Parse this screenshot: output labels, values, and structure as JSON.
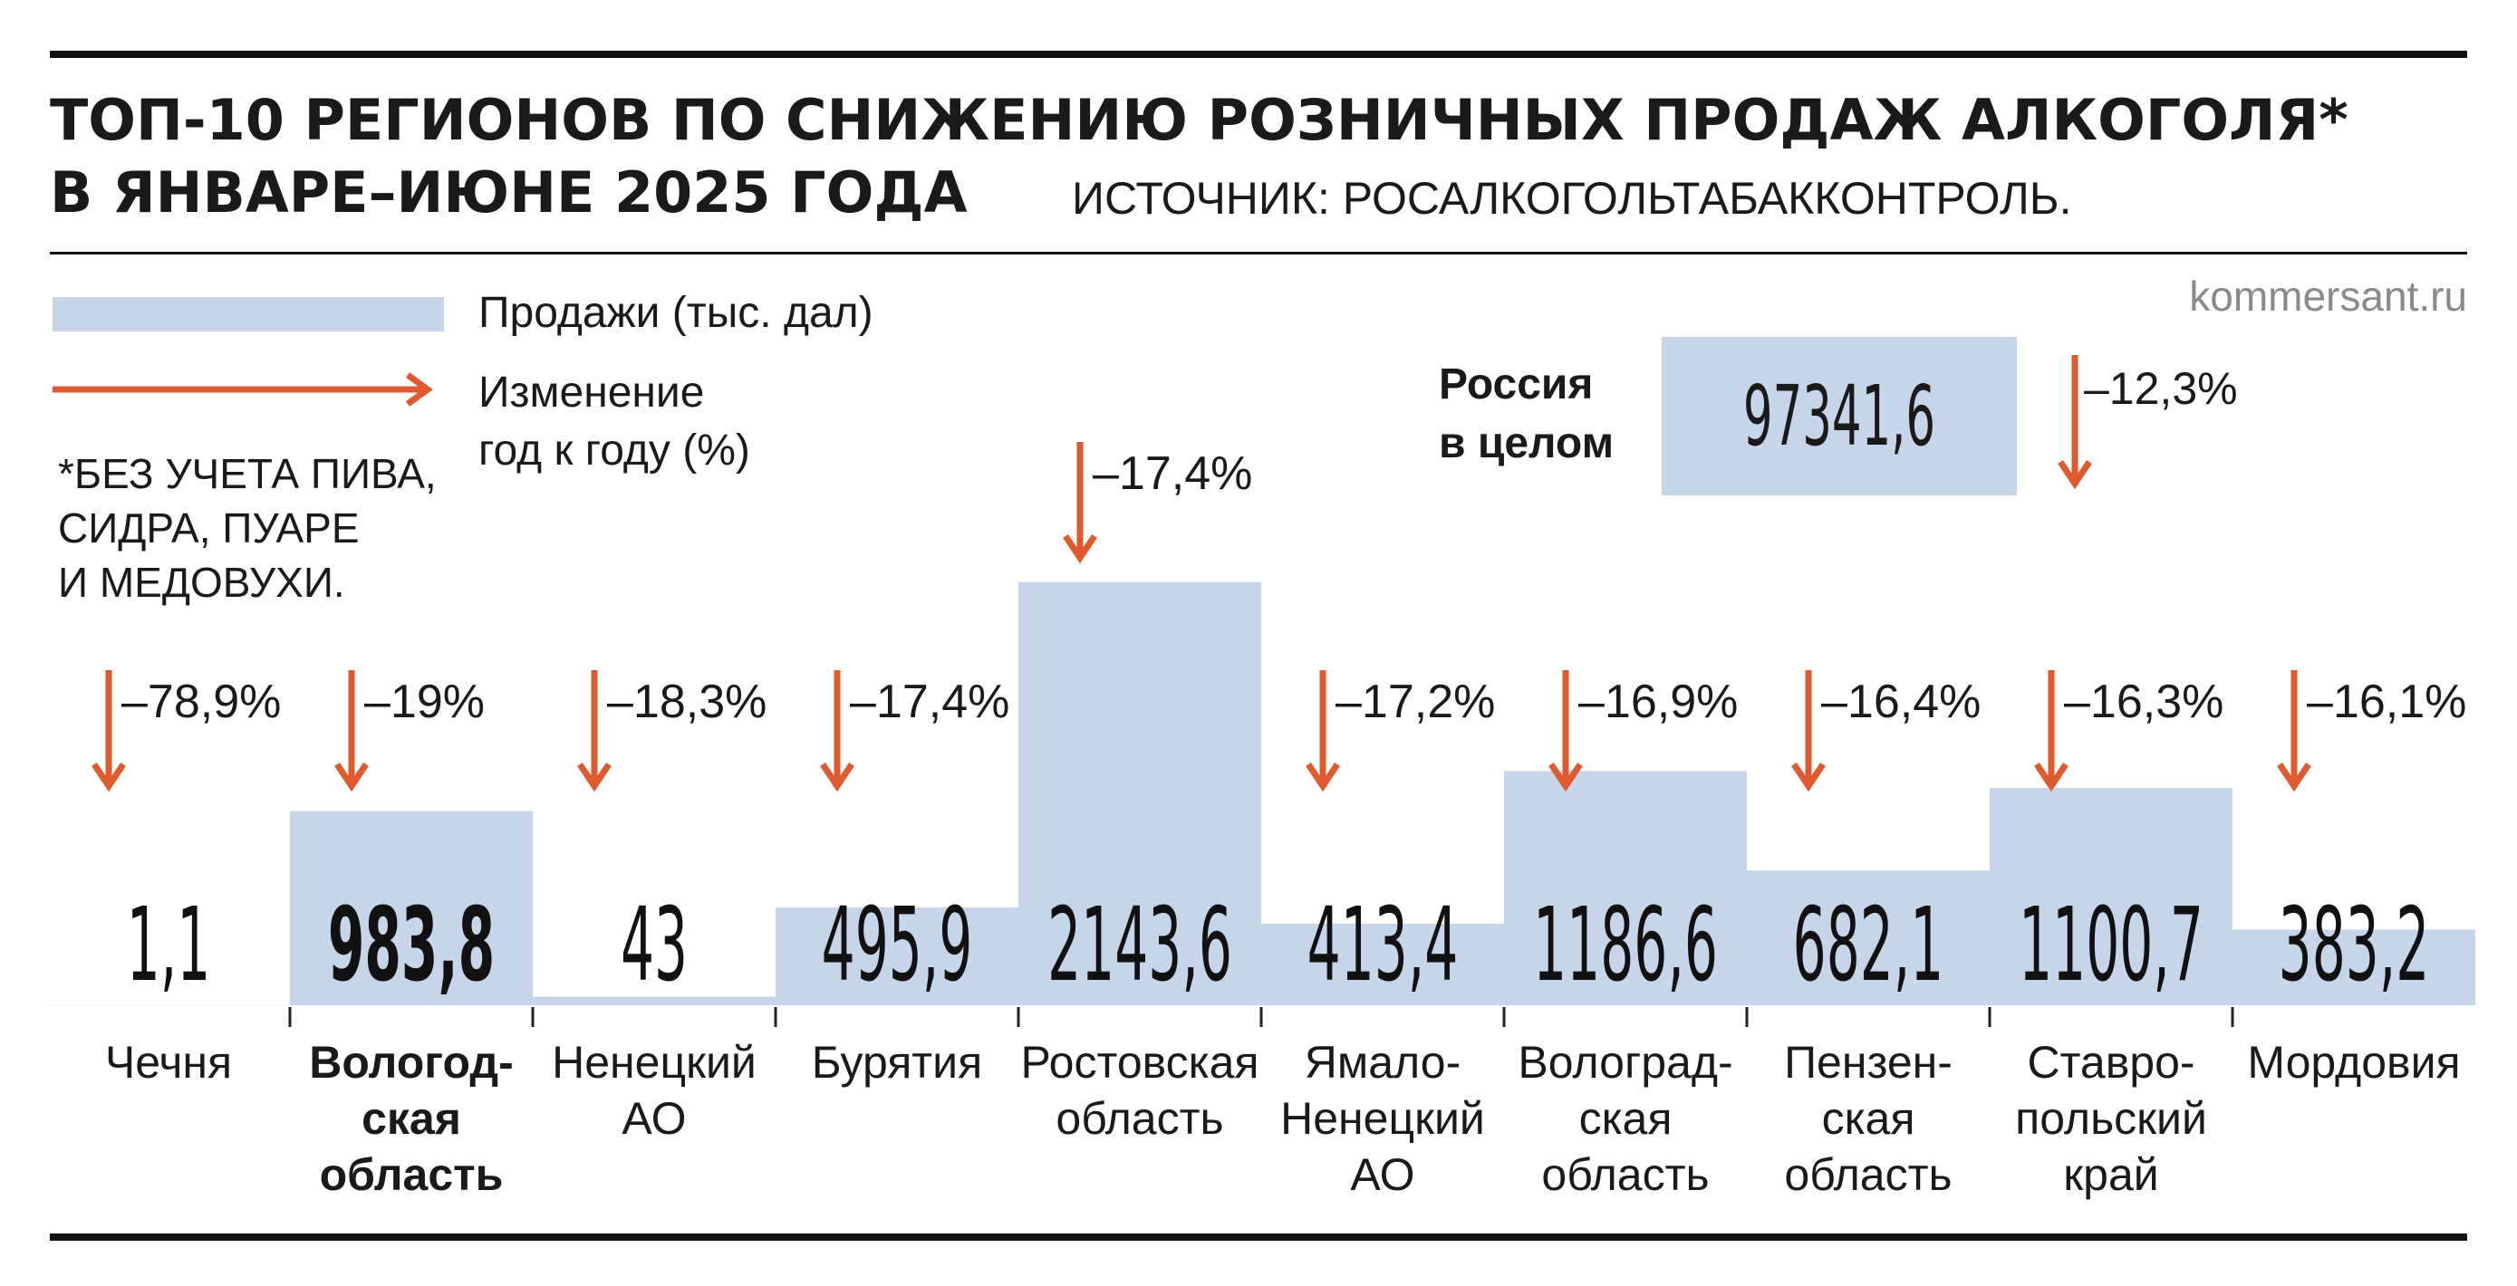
{
  "title": {
    "line1": "ТОП-10 РЕГИОНОВ ПО СНИЖЕНИЮ РОЗНИЧНЫХ ПРОДАЖ АЛКОГОЛЯ*",
    "line2": "В ЯНВАРЕ–ИЮНЕ 2025 ГОДА",
    "source": "ИСТОЧНИК: РОСАЛКОГОЛЬТАБАККОНТРОЛЬ."
  },
  "brand": "kommersant.ru",
  "legend": {
    "sales": "Продажи (тыс. дал)",
    "change_line1": "Изменение",
    "change_line2": "год к году (%)"
  },
  "footnote": [
    "*БЕЗ УЧЕТА ПИВА,",
    "СИДРА, ПУАРЕ",
    "И МЕДОВУХИ."
  ],
  "russia": {
    "label_line1": "Россия",
    "label_line2": "в целом",
    "value": "97341,6",
    "change": "–12,3%"
  },
  "colors": {
    "bar": "#c6d5e8",
    "arrow": "#e05a2f",
    "rule": "#111111"
  },
  "chart_data": {
    "type": "bar",
    "categories": [
      [
        "Чечня"
      ],
      [
        "Вологод-",
        "ская",
        "область"
      ],
      [
        "Ненецкий",
        "АО"
      ],
      [
        "Бурятия"
      ],
      [
        "Ростовская",
        "область"
      ],
      [
        "Ямало-",
        "Ненецкий",
        "АО"
      ],
      [
        "Волоград-",
        "ская",
        "область"
      ],
      [
        "Пензен-",
        "ская",
        "область"
      ],
      [
        "Ставро-",
        "польский",
        "край"
      ],
      [
        "Мордовия"
      ]
    ],
    "values": [
      1.1,
      983.8,
      43,
      495.9,
      2143.6,
      413.4,
      1186.6,
      682.1,
      1100.7,
      383.2
    ],
    "value_labels": [
      "1,1",
      "983,8",
      "43",
      "495,9",
      "2143,6",
      "413,4",
      "1186,6",
      "682,1",
      "1100,7",
      "383,2"
    ],
    "changes": [
      -78.9,
      -19,
      -18.3,
      -17.4,
      -17.4,
      -17.2,
      -16.9,
      -16.4,
      -16.3,
      -16.1
    ],
    "change_labels": [
      "–78,9%",
      "–19%",
      "–18,3%",
      "–17,4%",
      "–17,4%",
      "–17,2%",
      "–16,9%",
      "–16,4%",
      "–16,3%",
      "–16,1%"
    ],
    "highlight_index": 1,
    "unit": "тыс. дал"
  }
}
